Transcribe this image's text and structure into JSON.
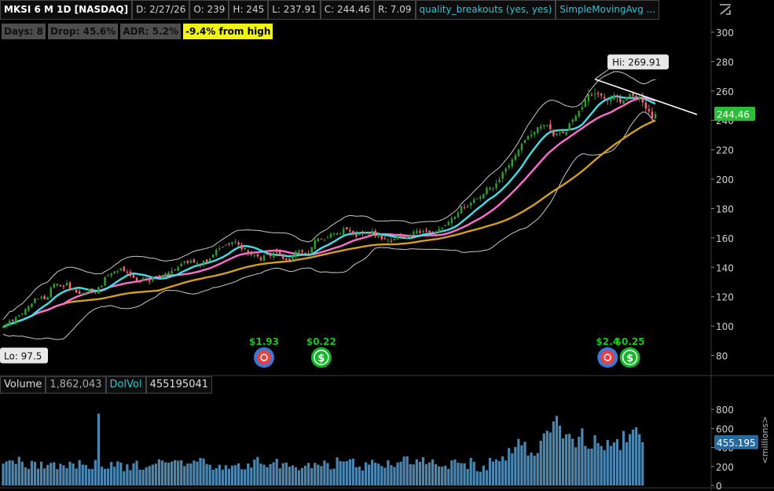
{
  "header": {
    "symbol": "MKSI 6 M 1D [NASDAQ]",
    "date": "D: 2/27/26",
    "open": "O: 239",
    "high": "H: 245",
    "low": "L: 237.91",
    "close": "C: 244.46",
    "range": "R: 7.09",
    "study1": "quality_breakouts (yes, yes)",
    "study2": "SimpleMovingAvg ..."
  },
  "badges": {
    "days": "Days: 8",
    "drop": "Drop: 45.6%",
    "adr": "ADR: 5.2%",
    "from_high": "-9.4% from high"
  },
  "volume_header": {
    "label": "Volume",
    "value": "1,862,043",
    "dolvol_label": "DolVol",
    "dolvol_value": "455195041"
  },
  "colors": {
    "up": "#2f9e2f",
    "down": "#f06a78",
    "sma_fast": "#3fe0e8",
    "sma_mid": "#ff6fcf",
    "sma_slow": "#d4a017",
    "band": "#c8c8c8",
    "volume": "#4a86b0",
    "price_tag": "#2ebd3b",
    "vol_tag": "#2a6a9a",
    "earn_up": "#1fc21f"
  },
  "chart_data": {
    "type": "candlestick",
    "price_axis": {
      "ticks": [
        300,
        280,
        260,
        240,
        220,
        200,
        180,
        160,
        140,
        120,
        100,
        80
      ],
      "range": [
        68,
        308
      ]
    },
    "last_price": "244.46",
    "hi_label": "Hi: 269.91",
    "lo_label": "Lo: 97.5",
    "volume_axis": {
      "ticks": [
        "800",
        "600",
        "400",
        "200",
        "0"
      ],
      "unit": "<millions>",
      "range": [
        0,
        950
      ]
    },
    "last_volume": "455.195",
    "events": [
      {
        "label": "$1.93",
        "type": "earnings",
        "bar": 82
      },
      {
        "label": "$0.22",
        "type": "dividend",
        "bar": 100
      },
      {
        "label": "$2.4",
        "type": "earnings",
        "bar": 190
      },
      {
        "label": "$0.25",
        "type": "dividend",
        "bar": 197
      }
    ],
    "closes": [
      99.5,
      101.2,
      103.6,
      103.4,
      106.1,
      107.5,
      108.3,
      111.6,
      113.5,
      115.5,
      118.8,
      118.7,
      119.7,
      118.3,
      119.9,
      126.1,
      128.7,
      128.9,
      127.3,
      126.7,
      129.3,
      124.5,
      125.1,
      122.9,
      121.9,
      121.9,
      122.8,
      125.3,
      124.7,
      122.9,
      126.6,
      127.4,
      133.4,
      134.4,
      135.8,
      137.3,
      137.6,
      139.4,
      137.5,
      136.6,
      134.2,
      132.9,
      130.6,
      130.2,
      132.9,
      132.0,
      130.3,
      133.2,
      133.4,
      133.4,
      134.3,
      135.8,
      136.6,
      137.6,
      138.3,
      140.1,
      142.3,
      144.0,
      143.0,
      144.4,
      143.2,
      142.8,
      141.3,
      144.4,
      143.8,
      145.9,
      148.7,
      152.0,
      152.9,
      154.2,
      155.4,
      155.9,
      157.3,
      157.7,
      155.5,
      152.2,
      152.4,
      149.8,
      148.6,
      148.3,
      147.6,
      145.0,
      148.2,
      148.9,
      147.6,
      150.1,
      150.4,
      148.6,
      146.0,
      145.1,
      144.9,
      147.9,
      150.7,
      151.2,
      150.6,
      149.8,
      149.7,
      153.7,
      158.5,
      159.6,
      159.2,
      158.9,
      160.2,
      162.8,
      163.1,
      163.1,
      162.9,
      166.3,
      165.9,
      164.4,
      162.9,
      161.0,
      162.8,
      163.4,
      163.2,
      162.9,
      164.7,
      161.3,
      161.7,
      159.2,
      159.1,
      159.1,
      157.4,
      159.3,
      161.5,
      161.1,
      160.3,
      160.1,
      161.6,
      164.1,
      165.0,
      163.6,
      164.8,
      164.5,
      163.6,
      163.5,
      163.8,
      165.8,
      167.0,
      168.7,
      170.8,
      173.4,
      174.4,
      177.2,
      181.6,
      180.6,
      181.1,
      184.2,
      186.3,
      186.8,
      187.9,
      190.1,
      194.0,
      194.2,
      193.8,
      197.0,
      199.6,
      204.6,
      207.2,
      209.4,
      213.4,
      216.4,
      220.0,
      224.0,
      226.6,
      229.3,
      230.2,
      232.3,
      235.3,
      236.0,
      236.9,
      236.6,
      233.9,
      229.6,
      230.9,
      231.5,
      231.2,
      232.0,
      237.9,
      240.5,
      242.9,
      246.6,
      248.9,
      253.9,
      257.7,
      256.8,
      258.1,
      257.8,
      257.0,
      254.9,
      253.7,
      254.9,
      257.1,
      255.6,
      252.3,
      253.6,
      255.6,
      258.1,
      256.6,
      254.5,
      255.8,
      252.3,
      248.1,
      246.3,
      241.5,
      244.46
    ],
    "volumes": [
      229,
      253,
      265,
      262,
      226,
      302,
      250,
      191,
      175,
      259,
      249,
      177,
      251,
      180,
      217,
      238,
      245,
      172,
      229,
      212,
      183,
      250,
      232,
      179,
      267,
      220,
      216,
      175,
      175,
      268,
      756,
      197,
      175,
      178,
      247,
      197,
      254,
      240,
      150,
      222,
      162,
      234,
      260,
      167,
      166,
      192,
      205,
      220,
      230,
      276,
      263,
      244,
      241,
      252,
      266,
      261,
      265,
      204,
      231,
      232,
      263,
      251,
      289,
      284,
      225,
      218,
      166,
      182,
      218,
      166,
      213,
      176,
      209,
      213,
      233,
      172,
      170,
      232,
      189,
      273,
      300,
      230,
      219,
      194,
      226,
      244,
      281,
      180,
      235,
      240,
      198,
      212,
      192,
      162,
      185,
      209,
      238,
      183,
      238,
      219,
      204,
      262,
      236,
      170,
      178,
      296,
      256,
      252,
      256,
      276,
      282,
      192,
      198,
      157,
      244,
      220,
      269,
      240,
      230,
      205,
      186,
      265,
      214,
      195,
      242,
      251,
      304,
      307,
      225,
      222,
      276,
      250,
      298,
      225,
      243,
      274,
      224,
      201,
      198,
      209,
      175,
      265,
      273,
      241,
      235,
      234,
      174,
      290,
      250,
      151,
      144,
      209,
      161,
      289,
      252,
      275,
      257,
      306,
      263,
      394,
      337,
      405,
      490,
      422,
      459,
      316,
      346,
      313,
      341,
      471,
      548,
      576,
      558,
      674,
      732,
      629,
      495,
      539,
      543,
      491,
      402,
      512,
      601,
      417,
      387,
      389,
      529,
      446,
      416,
      371,
      479,
      416,
      453,
      488,
      372,
      574,
      454,
      540,
      588,
      612,
      540,
      455
    ]
  }
}
